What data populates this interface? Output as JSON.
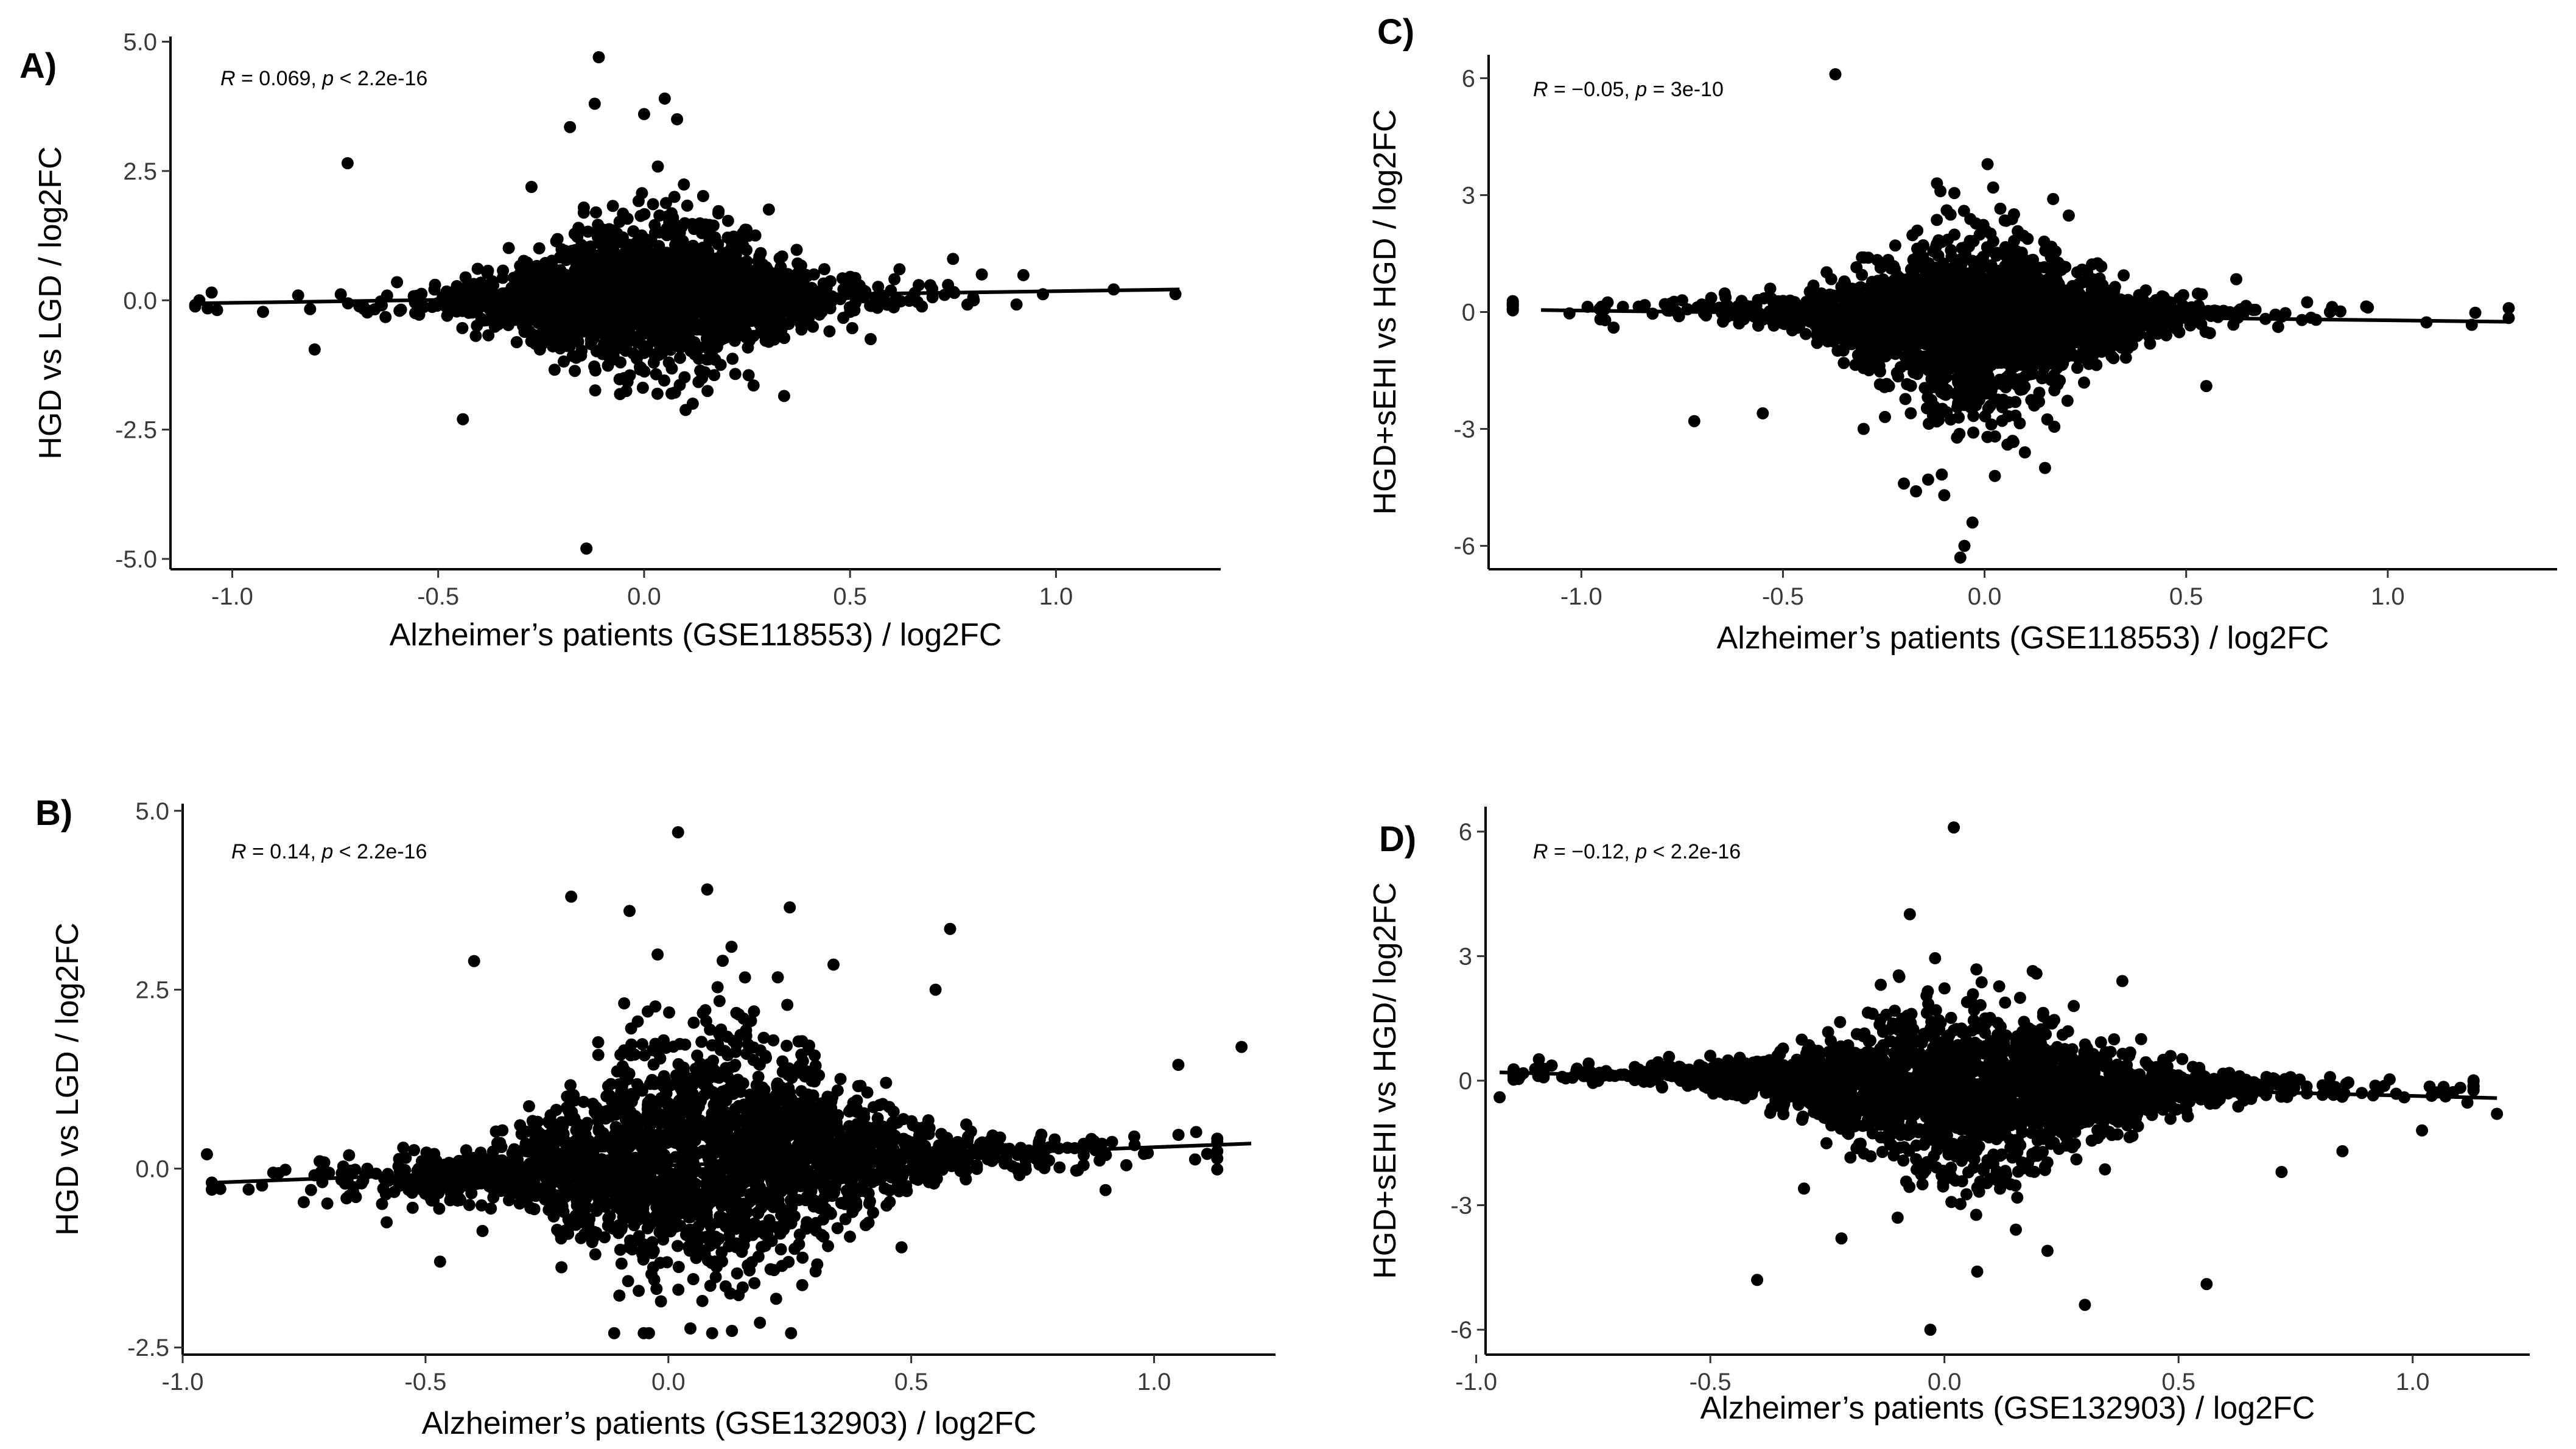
{
  "chart_data": [
    {
      "panel": "A)",
      "type": "scatter",
      "annotation": "R = 0.069, p < 2.2e-16",
      "xlabel": "Alzheimer’s patients (GSE118553) / log2FC",
      "ylabel": "HGD vs LGD / log2FC",
      "xlim": [
        -1.15,
        1.4
      ],
      "ylim": [
        -5.2,
        5.1
      ],
      "xticks": [
        -1.0,
        -0.5,
        0.0,
        0.5,
        1.0
      ],
      "xtick_labels": [
        "-1.0",
        "-0.5",
        "0.0",
        "0.5",
        "1.0"
      ],
      "yticks": [
        -5.0,
        -2.5,
        0.0,
        2.5,
        5.0
      ],
      "ytick_labels": [
        "-5.0",
        "-2.5",
        "0.0",
        "2.5",
        "5.0"
      ],
      "regression": {
        "x": [
          -1.1,
          1.3
        ],
        "y": [
          -0.06,
          0.21
        ]
      },
      "cloud": {
        "x_mean": 0.02,
        "x_sd": 0.22,
        "y_mean": 0.1,
        "y_sd": 0.35,
        "y_sd_spread": 0.6,
        "slope": 0.1,
        "n": 1900
      },
      "outliers": {
        "x": [
          -0.72,
          -0.14,
          -0.44,
          0.34,
          -0.11,
          -0.12,
          0.0,
          0.05,
          -0.18,
          0.08,
          1.29,
          0.82,
          -0.8,
          -1.08,
          -1.05,
          0.75,
          0.62,
          0.55,
          -0.6,
          0.45
        ],
        "y": [
          2.65,
          -4.8,
          -2.3,
          -1.85,
          4.7,
          3.8,
          3.6,
          3.9,
          3.35,
          3.5,
          0.12,
          0.5,
          -0.95,
          0.0,
          0.15,
          0.8,
          0.6,
          -0.75,
          0.35,
          -0.6
        ]
      },
      "grid": false,
      "legend": "none"
    },
    {
      "panel": "B)",
      "type": "scatter",
      "annotation": "R = 0.14, p < 2.2e-16",
      "xlabel": "Alzheimer’s patients (GSE132903) / log2FC",
      "ylabel": "HGD vs LGD / log2FC",
      "xlim": [
        -1.0,
        1.25
      ],
      "ylim": [
        -2.6,
        5.1
      ],
      "xticks": [
        -1.0,
        -0.5,
        0.0,
        0.5,
        1.0
      ],
      "xtick_labels": [
        "-1.0",
        "-0.5",
        "0.0",
        "0.5",
        "1.0"
      ],
      "yticks": [
        -2.5,
        0.0,
        2.5,
        5.0
      ],
      "ytick_labels": [
        "-2.5",
        "0.0",
        "2.5",
        "5.0"
      ],
      "regression": {
        "x": [
          -0.95,
          1.2
        ],
        "y": [
          -0.2,
          0.35
        ]
      },
      "cloud": {
        "x_mean": 0.08,
        "x_sd": 0.28,
        "y_mean": 0.2,
        "y_sd": 0.4,
        "y_sd_spread": 0.75,
        "slope": 0.25,
        "n": 2300
      },
      "outliers": {
        "x": [
          0.02,
          -0.2,
          0.08,
          -0.4,
          -0.08,
          0.58,
          0.25,
          -0.04,
          -0.03,
          0.07,
          1.18,
          1.05,
          -0.95,
          -0.47,
          -0.58,
          0.55,
          0.34,
          0.13,
          0.48,
          0.9
        ],
        "y": [
          4.7,
          3.8,
          3.9,
          2.9,
          3.6,
          3.35,
          3.65,
          -2.3,
          -1.15,
          -1.85,
          1.7,
          1.45,
          0.2,
          -1.3,
          -0.75,
          2.5,
          2.85,
          3.1,
          -1.1,
          -0.3
        ]
      },
      "grid": false,
      "legend": "none"
    },
    {
      "panel": "C)",
      "type": "scatter",
      "annotation": "R = −0.05, p = 3e-10",
      "xlabel": "Alzheimer’s patients (GSE118553) / log2FC",
      "ylabel": "HGD+sEHI vs HGD / log2FC",
      "xlim": [
        -1.23,
        1.42
      ],
      "ylim": [
        -6.6,
        6.6
      ],
      "xticks": [
        -1.0,
        -0.5,
        0.0,
        0.5,
        1.0
      ],
      "xtick_labels": [
        "-1.0",
        "-0.5",
        "0.0",
        "0.5",
        "1.0"
      ],
      "yticks": [
        -6,
        -3,
        0,
        3,
        6
      ],
      "ytick_labels": [
        "-6",
        "-3",
        "0",
        "3",
        "6"
      ],
      "regression": {
        "x": [
          -1.1,
          1.3
        ],
        "y": [
          0.05,
          -0.25
        ]
      },
      "cloud": {
        "x_mean": -0.02,
        "x_sd": 0.25,
        "y_mean": -0.35,
        "y_sd": 0.4,
        "y_sd_spread": 1.0,
        "slope": -0.1,
        "n": 2100
      },
      "outliers": {
        "x": [
          -0.37,
          0.17,
          0.05,
          -0.05,
          -0.1,
          -0.03,
          -0.14,
          1.3,
          -0.72,
          -0.55,
          -0.92,
          0.28,
          -0.75,
          0.8,
          0.55,
          -0.2,
          0.15,
          -0.3,
          0.1,
          -0.17
        ],
        "y": [
          6.1,
          2.9,
          2.35,
          -6.0,
          -4.7,
          -5.4,
          -4.3,
          0.1,
          -2.8,
          -2.6,
          -0.4,
          1.25,
          0.3,
          0.25,
          -1.9,
          -4.4,
          -4.0,
          -3.0,
          -3.6,
          -4.6
        ]
      },
      "grid": false,
      "legend": "none"
    },
    {
      "panel": "D)",
      "type": "scatter",
      "annotation": "R = −0.12, p < 2.2e-16",
      "xlabel": "Alzheimer’s patients (GSE132903) / log2FC",
      "ylabel": "HGD+sEHI vs HGD/ log2FC",
      "xlim": [
        -0.98,
        1.25
      ],
      "ylim": [
        -6.6,
        6.6
      ],
      "xticks": [
        -1.0,
        -0.5,
        0.0,
        0.5,
        1.0
      ],
      "xtick_labels": [
        "-1.0",
        "-0.5",
        "0.0",
        "0.5",
        "1.0"
      ],
      "yticks": [
        -6,
        -3,
        0,
        3,
        6
      ],
      "ytick_labels": [
        "-6",
        "-3",
        "0",
        "3",
        "6"
      ],
      "regression": {
        "x": [
          -0.95,
          1.18
        ],
        "y": [
          0.2,
          -0.42
        ]
      },
      "cloud": {
        "x_mean": 0.05,
        "x_sd": 0.3,
        "y_mean": -0.35,
        "y_sd": 0.4,
        "y_sd_spread": 0.9,
        "slope": -0.2,
        "n": 2300
      },
      "outliers": {
        "x": [
          0.02,
          -0.02,
          -0.03,
          0.3,
          0.56,
          -0.4,
          -0.22,
          0.38,
          0.07,
          1.18,
          1.02,
          -0.95,
          -0.5,
          0.12,
          0.42,
          -0.1,
          0.22,
          0.72,
          0.85,
          -0.3
        ],
        "y": [
          6.1,
          2.95,
          -6.0,
          -5.4,
          -4.9,
          -4.8,
          -3.8,
          2.4,
          -4.6,
          -0.8,
          -1.2,
          -0.4,
          0.6,
          1.3,
          1.0,
          -3.3,
          -4.1,
          -2.2,
          -1.7,
          -2.6
        ]
      },
      "grid": false,
      "legend": "none"
    }
  ]
}
